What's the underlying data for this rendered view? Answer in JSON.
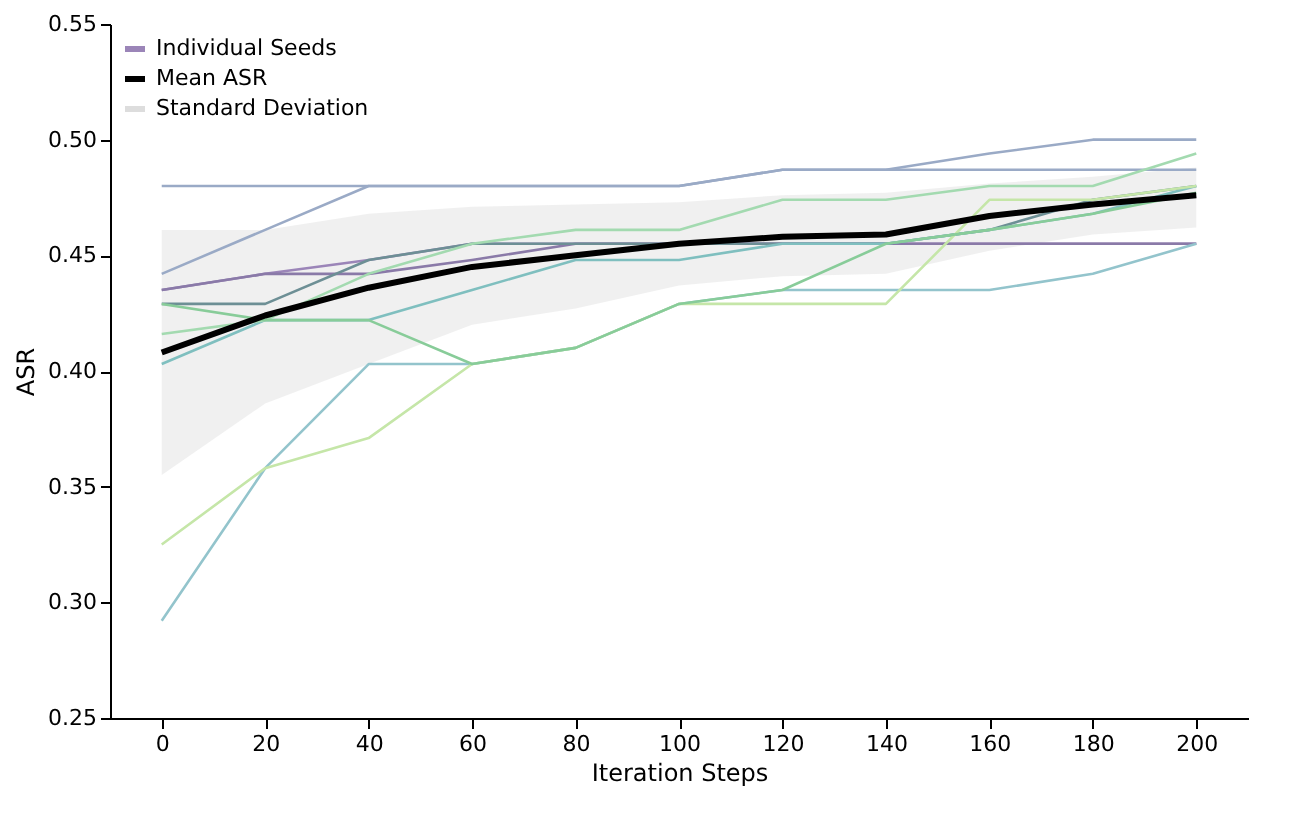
{
  "chart_data": {
    "type": "line",
    "xlabel": "Iteration Steps",
    "ylabel": "ASR",
    "x": [
      0,
      20,
      40,
      60,
      80,
      100,
      120,
      140,
      160,
      180,
      200
    ],
    "xlim": [
      -10,
      210
    ],
    "xticks": [
      0,
      20,
      40,
      60,
      80,
      100,
      120,
      140,
      160,
      180,
      200
    ],
    "ylim": [
      0.25,
      0.55
    ],
    "yticks": [
      {
        "value": 0.25,
        "label": "0.25"
      },
      {
        "value": 0.3,
        "label": "0.30"
      },
      {
        "value": 0.35,
        "label": "0.35"
      },
      {
        "value": 0.4,
        "label": "0.40"
      },
      {
        "value": 0.45,
        "label": "0.45"
      },
      {
        "value": 0.5,
        "label": "0.50"
      },
      {
        "value": 0.55,
        "label": "0.55"
      }
    ],
    "grid": false,
    "legend": "top left",
    "annotations": [
      "Standard Deviation"
    ],
    "series": [
      {
        "name": "Individual Seeds",
        "color": "#9b85b8",
        "values": [
          0.435,
          0.442,
          0.448,
          0.455,
          0.455,
          0.455,
          0.455,
          0.455,
          0.455,
          0.455,
          0.455
        ]
      },
      {
        "color": "#9aaac6",
        "values": [
          0.48,
          0.48,
          0.48,
          0.48,
          0.48,
          0.48,
          0.487,
          0.487,
          0.487,
          0.487,
          0.487
        ]
      },
      {
        "color": "#9aaac6",
        "values": [
          0.442,
          0.461,
          0.48,
          0.48,
          0.48,
          0.48,
          0.487,
          0.487,
          0.494,
          0.5,
          0.5
        ]
      },
      {
        "color": "#8a7aa8",
        "values": [
          0.435,
          0.442,
          0.442,
          0.448,
          0.455,
          0.455,
          0.455,
          0.455,
          0.455,
          0.455,
          0.455
        ]
      },
      {
        "color": "#6d8f95",
        "values": [
          0.429,
          0.429,
          0.448,
          0.455,
          0.455,
          0.455,
          0.455,
          0.455,
          0.461,
          0.474,
          0.48
        ]
      },
      {
        "color": "#7fbfbf",
        "values": [
          0.403,
          0.422,
          0.422,
          0.435,
          0.448,
          0.448,
          0.455,
          0.455,
          0.461,
          0.468,
          0.48
        ]
      },
      {
        "color": "#a3dab0",
        "values": [
          0.416,
          0.422,
          0.442,
          0.455,
          0.461,
          0.461,
          0.474,
          0.474,
          0.48,
          0.48,
          0.494
        ]
      },
      {
        "color": "#93c4cc",
        "values": [
          0.292,
          0.358,
          0.403,
          0.403,
          0.41,
          0.429,
          0.435,
          0.435,
          0.435,
          0.442,
          0.455
        ]
      },
      {
        "color": "#c5e6a8",
        "values": [
          0.325,
          0.358,
          0.371,
          0.403,
          0.41,
          0.429,
          0.429,
          0.429,
          0.474,
          0.474,
          0.48
        ]
      },
      {
        "color": "#88cc99",
        "values": [
          0.429,
          0.422,
          0.422,
          0.403,
          0.41,
          0.429,
          0.435,
          0.455,
          0.461,
          0.468,
          0.477
        ]
      },
      {
        "name": "Mean ASR",
        "color": "#000000",
        "values": [
          0.408,
          0.424,
          0.436,
          0.445,
          0.45,
          0.455,
          0.458,
          0.459,
          0.467,
          0.472,
          0.476
        ],
        "lower": [
          0.355,
          0.386,
          0.403,
          0.42,
          0.427,
          0.437,
          0.441,
          0.442,
          0.452,
          0.459,
          0.462
        ],
        "upper": [
          0.461,
          0.461,
          0.468,
          0.471,
          0.472,
          0.473,
          0.476,
          0.477,
          0.481,
          0.484,
          0.488
        ]
      }
    ]
  }
}
